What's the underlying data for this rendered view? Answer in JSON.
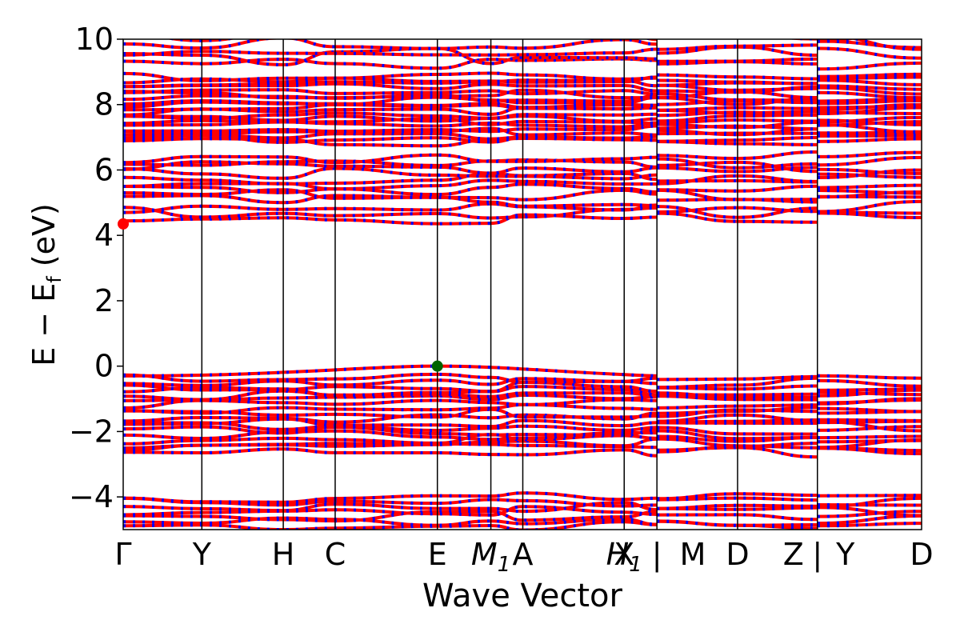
{
  "chart_data": {
    "type": "line",
    "title": "",
    "xlabel": "Wave Vector",
    "ylabel": "E − E",
    "ylabel_sub": "f",
    "ylabel_unit": " (eV)",
    "ylim": [
      -5,
      10
    ],
    "yticks": [
      10,
      8,
      6,
      4,
      2,
      0,
      -2,
      -4
    ],
    "ytick_labels": [
      "10",
      "8",
      "6",
      "4",
      "2",
      "0",
      "−2",
      "−4"
    ],
    "kpoint_labels": [
      {
        "label": "Γ",
        "k": 0.0
      },
      {
        "label": "Y",
        "k": 0.0985
      },
      {
        "label": "H",
        "k": 0.2005
      },
      {
        "label": "C",
        "k": 0.2655
      },
      {
        "label": "E",
        "k": 0.3935
      },
      {
        "label": "M",
        "sub": "1",
        "k": 0.4605
      },
      {
        "label": "A",
        "k": 0.5005
      },
      {
        "label": "X",
        "k": 0.6275
      },
      {
        "label": "H",
        "sub": "1",
        "k": 0.6275
      },
      {
        "label": "|",
        "k": 0.6685
      },
      {
        "label": "M",
        "k": 0.7135
      },
      {
        "label": "D",
        "k": 0.7695
      },
      {
        "label": "Z",
        "k": 0.8395
      },
      {
        "label": "|",
        "k": 0.8695
      },
      {
        "label": "Y",
        "k": 0.9045
      },
      {
        "label": "D",
        "k": 1.0
      }
    ],
    "kpoint_lines": [
      0.0,
      0.0985,
      0.2005,
      0.2655,
      0.3935,
      0.4605,
      0.5005,
      0.6275,
      0.6685,
      0.7695,
      0.8695,
      1.0
    ],
    "band_segments": [
      {
        "from": 0.0,
        "to": 0.6685
      },
      {
        "from": 0.6685,
        "to": 0.8695
      },
      {
        "from": 0.8695,
        "to": 1.0
      }
    ],
    "vbm": {
      "k": 0.3935,
      "energy": 0.0
    },
    "cbm": {
      "k": 0.0,
      "energy": 4.35
    },
    "series": [
      {
        "color": "#ff0000"
      },
      {
        "color": "#0000ff"
      }
    ],
    "colors": {
      "spin_up": "#ff0000",
      "spin_down": "#0000ff",
      "vbm": "#006400",
      "cbm": "#ff0000"
    },
    "grid": false
  }
}
